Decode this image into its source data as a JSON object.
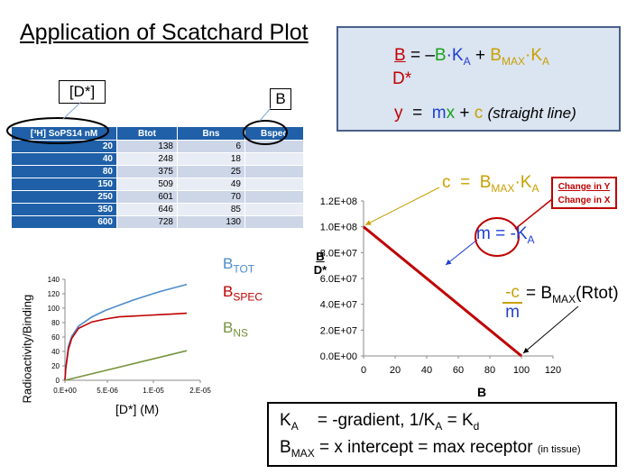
{
  "title": "Application of Scatchard Plot",
  "equation": {
    "lhs_num": "B",
    "lhs_den": "D*",
    "eq1_rest_a": "= –",
    "eq1_B": "B",
    "eq1_dot_k": "·K",
    "eq1_ka_sub": "A",
    "eq1_plus": "+",
    "eq1_B2": "B",
    "eq1_max_sub": "MAX",
    "eq1_dot_k2": "·K",
    "eq1_ka_sub2": "A",
    "eq2_y": "y",
    "eq2_eq": "=",
    "eq2_m": "m",
    "eq2_x": "x",
    "eq2_plus": "+",
    "eq2_c": "c",
    "eq2_note": "(straight line)"
  },
  "callouts": {
    "d_star": "[D*]",
    "b": "B"
  },
  "table": {
    "headers": [
      "[³H] SoPS14 nM",
      "Btot",
      "Bns",
      "Bspec"
    ],
    "rows": [
      [
        "20",
        "138",
        "6",
        ""
      ],
      [
        "40",
        "248",
        "18",
        ""
      ],
      [
        "80",
        "375",
        "25",
        ""
      ],
      [
        "150",
        "509",
        "49",
        ""
      ],
      [
        "250",
        "601",
        "70",
        ""
      ],
      [
        "350",
        "646",
        "85",
        ""
      ],
      [
        "600",
        "728",
        "130",
        ""
      ]
    ]
  },
  "colors": {
    "btot": "#4a8ccc",
    "bspec": "#c00000",
    "bns": "#76933c",
    "line": "#c00000",
    "orange": "#c8a000",
    "blue": "#1f3fd0"
  },
  "chart_data": [
    {
      "type": "line",
      "xlabel": "[D*] (M)",
      "ylabel": "Radioactivity/Binding",
      "xlim": [
        0,
        2e-05
      ],
      "ylim": [
        0,
        140
      ],
      "x_ticks": [
        "0.E+00",
        "5.E-06",
        "1.E-05",
        "2.E-05"
      ],
      "y_ticks": [
        "0",
        "20",
        "40",
        "60",
        "80",
        "100",
        "120",
        "140"
      ],
      "series": [
        {
          "name_main": "B",
          "name_sub": "TOT",
          "x": [
            0,
            1e-07,
            5e-07,
            1e-06,
            2e-06,
            4e-06,
            6e-06,
            8e-06,
            1e-05,
            1.2e-05,
            1.4e-05,
            1.6e-05,
            1.8e-05
          ],
          "y": [
            0,
            17,
            47,
            61,
            75,
            88,
            97,
            104,
            111,
            117,
            123,
            128,
            133
          ]
        },
        {
          "name_main": "B",
          "name_sub": "SPEC",
          "x": [
            0,
            1e-07,
            5e-07,
            1e-06,
            2e-06,
            4e-06,
            6e-06,
            8e-06,
            1e-05,
            1.2e-05,
            1.4e-05,
            1.6e-05,
            1.8e-05
          ],
          "y": [
            0,
            15,
            43,
            58,
            72,
            81,
            85,
            88,
            89,
            90,
            91,
            92,
            93
          ]
        },
        {
          "name_main": "B",
          "name_sub": "NS",
          "x": [
            0,
            1.8e-05
          ],
          "y": [
            0,
            41
          ]
        }
      ]
    },
    {
      "type": "line",
      "xlabel": "B",
      "ylabel_num": "B",
      "ylabel_den": "D*",
      "xlim": [
        0,
        120
      ],
      "ylim": [
        0,
        120000000
      ],
      "x_ticks": [
        "0",
        "20",
        "40",
        "60",
        "80",
        "100",
        "120"
      ],
      "y_ticks": [
        "0.0E+00",
        "2.0E+07",
        "4.0E+07",
        "6.0E+07",
        "8.0E+07",
        "1.0E+08",
        "1.2E+08"
      ],
      "series": [
        {
          "x": [
            0,
            100
          ],
          "y": [
            100000000,
            0
          ]
        }
      ]
    }
  ],
  "annotations": {
    "c_label": "c",
    "c_eq": "=",
    "c_b": "B",
    "c_max": "MAX",
    "c_dot_k": "·K",
    "c_a": "A",
    "change_y": "Change in Y",
    "change_x": "Change in X",
    "m_label": "m",
    "m_eq": "=",
    "m_val": "-K",
    "m_sub": "A",
    "negc_num": "-c",
    "negc_den": "m",
    "negc_eq": "= B",
    "negc_sub": "MAX",
    "negc_rest": "(Rtot)"
  },
  "bottom_box": {
    "l1_k": "K",
    "l1_ksub": "A",
    "l1_rest": "= -gradient, 1/K",
    "l1_sub2": "A",
    "l1_eq": "= K",
    "l1_sub3": "d",
    "l2_b": "B",
    "l2_sub": "MAX",
    "l2_rest": "= x intercept = max receptor",
    "l2_small": "(in tissue)"
  }
}
